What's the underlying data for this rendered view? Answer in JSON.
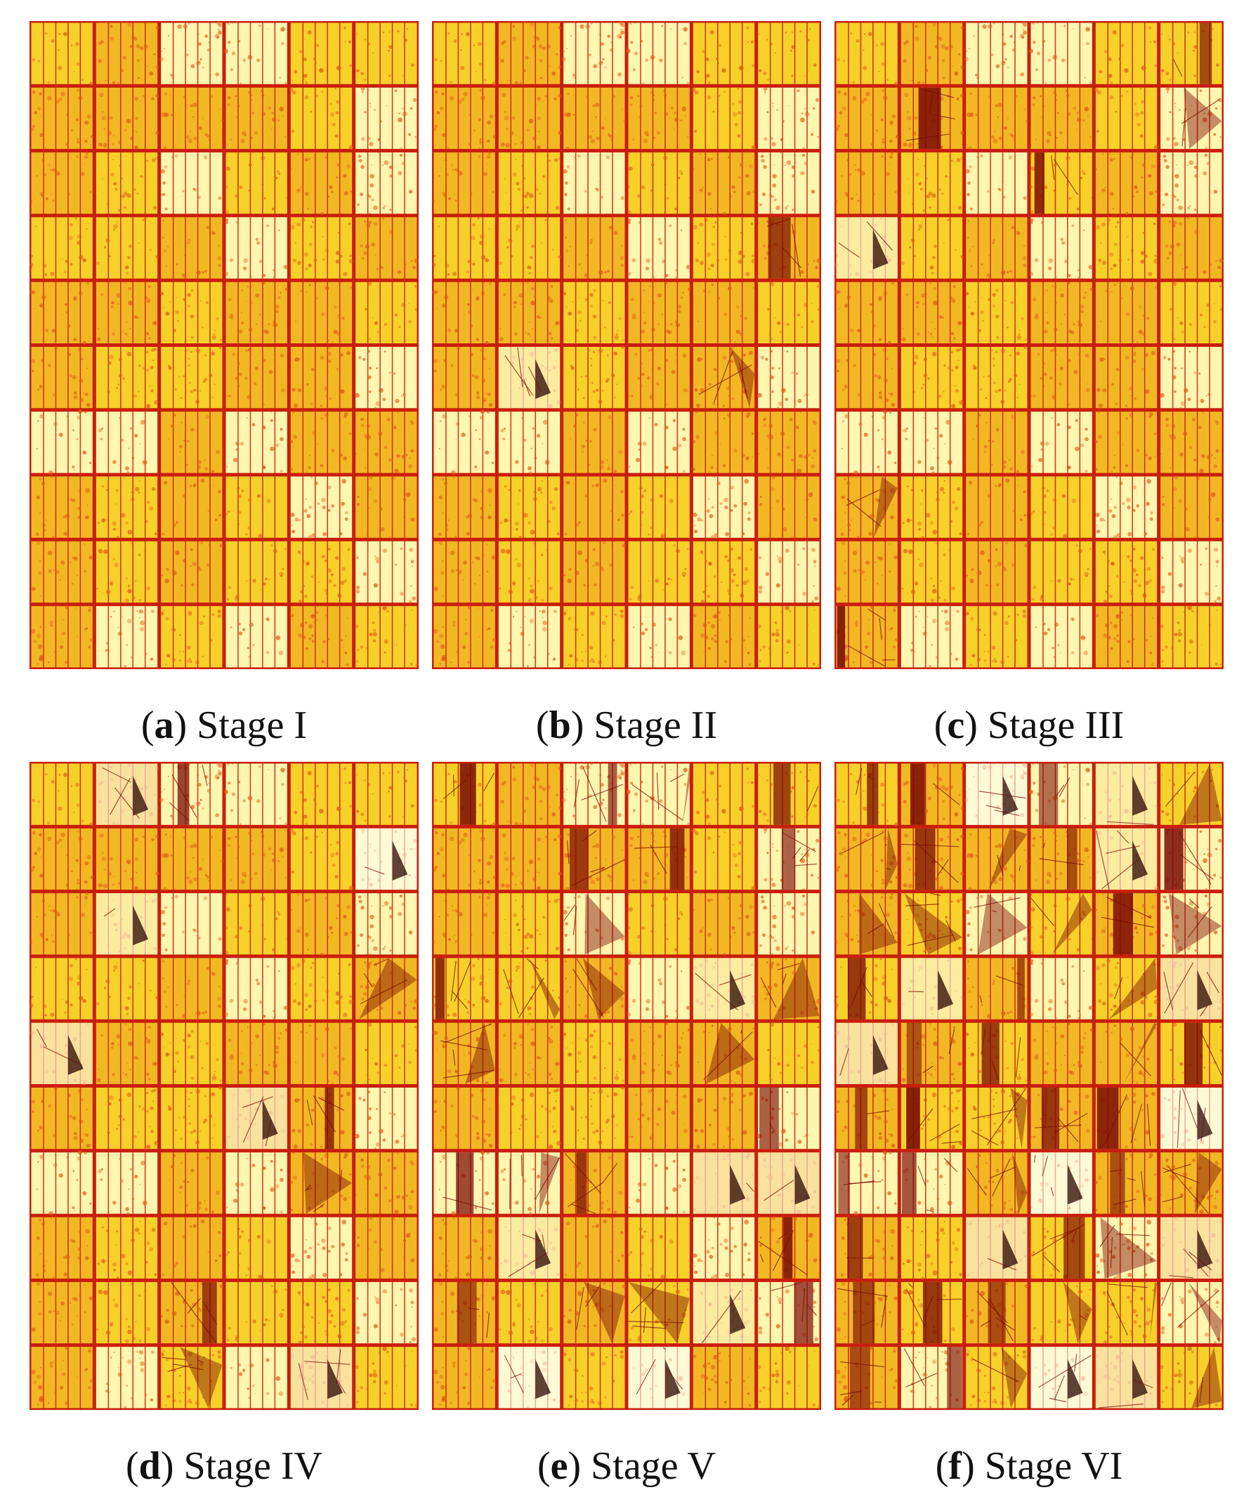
{
  "colors": {
    "cell_base": "#f7d12a",
    "cell_bright": "#fff6b0",
    "cell_white": "#fffef0",
    "grid": "#c81e0e",
    "spot": "#e05a14",
    "dark": "#7a0a05",
    "black": "#2a0502"
  },
  "panels": [
    {
      "letter": "a",
      "label": "Stage I",
      "degradation": 0.0
    },
    {
      "letter": "b",
      "label": "Stage II",
      "degradation": 0.05
    },
    {
      "letter": "c",
      "label": "Stage III",
      "degradation": 0.12
    },
    {
      "letter": "d",
      "label": "Stage IV",
      "degradation": 0.2
    },
    {
      "letter": "e",
      "label": "Stage V",
      "degradation": 0.55
    },
    {
      "letter": "f",
      "label": "Stage VI",
      "degradation": 0.85
    }
  ]
}
